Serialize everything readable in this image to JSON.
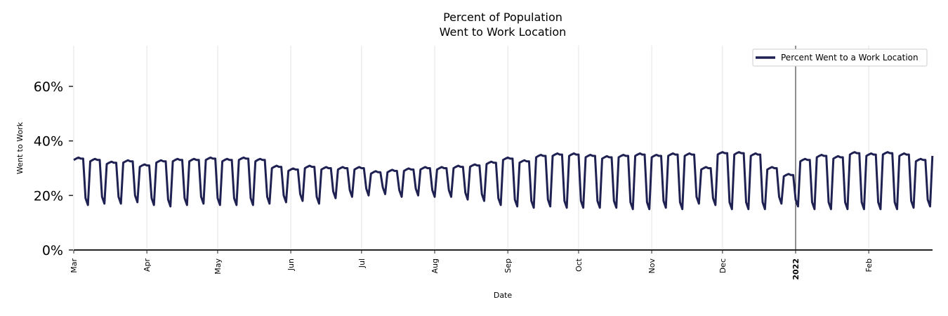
{
  "chart_data": {
    "type": "line",
    "title_lines": [
      "Percent of Population",
      "Went to Work Location"
    ],
    "xlabel": "Date",
    "ylabel": "Went to Work",
    "ylim": [
      0,
      75
    ],
    "y_ticks": [
      0,
      20,
      40,
      60
    ],
    "y_tick_labels": [
      "0%",
      "20%",
      "40%",
      "60%"
    ],
    "x_start_date": "2021-03-01",
    "x_end_date": "2022-02-28",
    "x_ticks": [
      {
        "date": "2021-03-01",
        "label": "Mar",
        "bold": false
      },
      {
        "date": "2021-04-01",
        "label": "Apr",
        "bold": false
      },
      {
        "date": "2021-05-01",
        "label": "May",
        "bold": false
      },
      {
        "date": "2021-06-01",
        "label": "Jun",
        "bold": false
      },
      {
        "date": "2021-07-01",
        "label": "Jul",
        "bold": false
      },
      {
        "date": "2021-08-01",
        "label": "Aug",
        "bold": false
      },
      {
        "date": "2021-09-01",
        "label": "Sep",
        "bold": false
      },
      {
        "date": "2021-10-01",
        "label": "Oct",
        "bold": false
      },
      {
        "date": "2021-11-01",
        "label": "Nov",
        "bold": false
      },
      {
        "date": "2021-12-01",
        "label": "Dec",
        "bold": false
      },
      {
        "date": "2022-01-01",
        "label": "2022",
        "bold": true
      },
      {
        "date": "2022-02-01",
        "label": "Feb",
        "bold": false
      }
    ],
    "reference_line_date": "2022-01-01",
    "grid": "vertical",
    "legend": {
      "position": "top-right",
      "entries": [
        "Percent Went to a Work Location"
      ]
    },
    "series": [
      {
        "name": "Percent Went to a Work Location",
        "color": "#1f2152",
        "granularity": "daily values summarised per week (weeks start Monday 2021-03-01)",
        "weekday_pct": [
          33.5,
          33,
          32,
          32.5,
          31,
          32.5,
          33,
          33,
          33.5,
          33,
          33.5,
          33,
          30.5,
          29.5,
          30.5,
          30,
          30,
          30,
          28.5,
          29,
          29.5,
          30,
          30,
          30.5,
          31,
          32,
          33.5,
          32.5,
          34.5,
          35,
          35,
          34.5,
          34,
          34.5,
          35,
          34.5,
          35,
          35,
          30,
          35.5,
          35.5,
          35,
          30,
          27.5,
          33,
          34.5,
          34,
          35.5,
          35,
          35.5,
          35,
          33,
          35
        ],
        "weekend_pct": [
          16.5,
          17,
          17,
          17.5,
          16.5,
          16,
          16.5,
          17,
          16.5,
          16.5,
          16.5,
          17,
          17.5,
          18,
          17,
          19,
          19.5,
          20,
          20.5,
          19.5,
          20,
          19.5,
          19.5,
          18.5,
          18,
          16.5,
          16,
          15.5,
          16,
          15.5,
          15.5,
          15.5,
          15.5,
          15,
          15,
          15.5,
          15,
          17,
          16.5,
          15,
          15,
          15,
          17,
          16,
          15,
          15,
          15,
          15,
          15,
          15,
          15.5,
          16,
          16
        ]
      }
    ]
  }
}
